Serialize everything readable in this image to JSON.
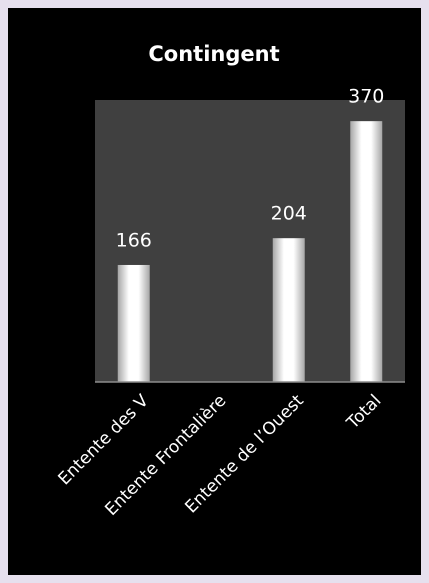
{
  "chart_data": {
    "type": "bar",
    "title": "Contingent",
    "categories": [
      "Entente des V",
      "Entente Frontalière",
      "Entente de l’Ouest",
      "Total"
    ],
    "values": [
      166,
      null,
      204,
      370
    ],
    "color": "#ffffff",
    "ylim": [
      0,
      400
    ]
  }
}
